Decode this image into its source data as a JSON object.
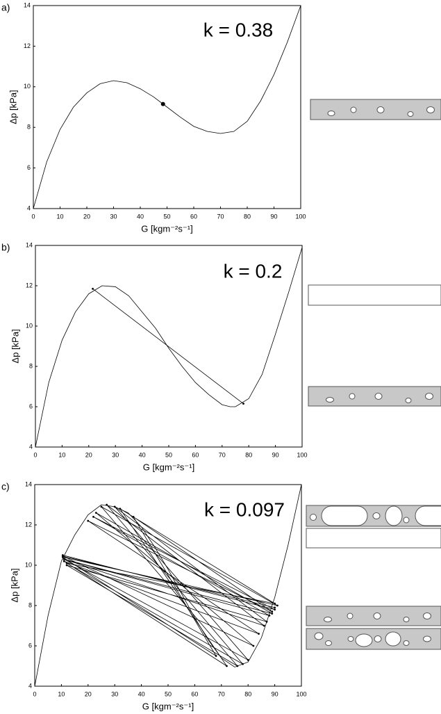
{
  "chart_data": [
    {
      "type": "line",
      "panel_label": "a)",
      "annotation": "k = 0.38",
      "xlabel": "G [kgm⁻²s⁻¹]",
      "ylabel": "Δp [kPa]",
      "xlim": [
        0,
        100
      ],
      "ylim": [
        4,
        14
      ],
      "xticks": [
        0,
        10,
        20,
        30,
        40,
        50,
        60,
        70,
        80,
        90,
        100
      ],
      "yticks": [
        4,
        6,
        8,
        10,
        12,
        14
      ],
      "series": [
        {
          "color": "#000000",
          "x": [
            0,
            5,
            10,
            15,
            20,
            25,
            30,
            35,
            40,
            45,
            50,
            55,
            60,
            65,
            70,
            75,
            80,
            85,
            90,
            95,
            100
          ],
          "values": [
            4,
            6.3,
            7.9,
            9.0,
            9.7,
            10.15,
            10.3,
            10.2,
            9.9,
            9.5,
            9.0,
            8.5,
            8.05,
            7.8,
            7.7,
            7.8,
            8.3,
            9.3,
            10.6,
            12.2,
            14
          ]
        },
        {
          "color": "#000000",
          "line": false,
          "marker": "large",
          "x": [
            48.5
          ],
          "values": [
            9.15
          ]
        }
      ]
    },
    {
      "type": "line",
      "panel_label": "b)",
      "annotation": "k = 0.2",
      "xlabel": "G [kgm⁻²s⁻¹]",
      "ylabel": "Δp [kPa]",
      "xlim": [
        0,
        100
      ],
      "ylim": [
        4,
        14
      ],
      "xticks": [
        0,
        10,
        20,
        30,
        40,
        50,
        60,
        70,
        80,
        90,
        100
      ],
      "yticks": [
        4,
        6,
        8,
        10,
        12,
        14
      ],
      "series": [
        {
          "color": "#000000",
          "x": [
            0,
            5,
            10,
            15,
            20,
            25,
            30,
            35,
            40,
            45,
            50,
            55,
            60,
            65,
            70,
            73,
            75,
            80,
            85,
            90,
            95,
            100
          ],
          "values": [
            4,
            7.2,
            9.3,
            10.7,
            11.6,
            12.0,
            11.95,
            11.5,
            10.7,
            9.9,
            8.9,
            8.0,
            7.2,
            6.6,
            6.1,
            6.0,
            6.0,
            6.4,
            7.6,
            9.6,
            11.7,
            13.9
          ]
        },
        {
          "color": "#000000",
          "marker": "small",
          "x": [
            21.5,
            78
          ],
          "values": [
            11.85,
            6.15
          ]
        }
      ]
    },
    {
      "type": "line",
      "panel_label": "c)",
      "annotation": "k = 0.097",
      "xlabel": "G [kgm⁻²s⁻¹]",
      "ylabel": "Δp [kPa]",
      "xlim": [
        0,
        100
      ],
      "ylim": [
        4,
        14
      ],
      "xticks": [
        0,
        10,
        20,
        30,
        40,
        50,
        60,
        70,
        80,
        90,
        100
      ],
      "yticks": [
        4,
        6,
        8,
        10,
        12,
        14
      ],
      "series": [
        {
          "color": "#000000",
          "x": [
            0,
            5,
            10,
            15,
            20,
            25,
            30,
            35,
            40,
            45,
            50,
            55,
            60,
            65,
            70,
            75,
            80,
            85,
            90,
            95,
            100
          ],
          "values": [
            4,
            7.5,
            10.2,
            11.5,
            12.5,
            13.0,
            12.9,
            12.6,
            11.9,
            10.9,
            9.8,
            8.6,
            7.4,
            6.3,
            5.4,
            4.95,
            5.2,
            6.4,
            8.4,
            11.0,
            14
          ]
        },
        {
          "color": "#000000",
          "marker": "small",
          "x": [
            10.5,
            90,
            22,
            88,
            11,
            86,
            27,
            78,
            12,
            90,
            32,
            72,
            11,
            84,
            20,
            89,
            37,
            68,
            10.5,
            91,
            25,
            76,
            12,
            87,
            30,
            80,
            11,
            89,
            23,
            82,
            10.5,
            90
          ],
          "values": [
            10.5,
            7.8,
            12.4,
            7.5,
            10.3,
            7.0,
            13.0,
            5.1,
            10.1,
            8.1,
            12.8,
            5.0,
            10.2,
            6.6,
            12.2,
            7.7,
            12.4,
            5.5,
            10.4,
            8.0,
            12.9,
            5.0,
            10.0,
            7.2,
            12.9,
            5.3,
            10.3,
            7.6,
            12.6,
            6.0,
            10.45,
            7.9
          ]
        }
      ]
    }
  ]
}
